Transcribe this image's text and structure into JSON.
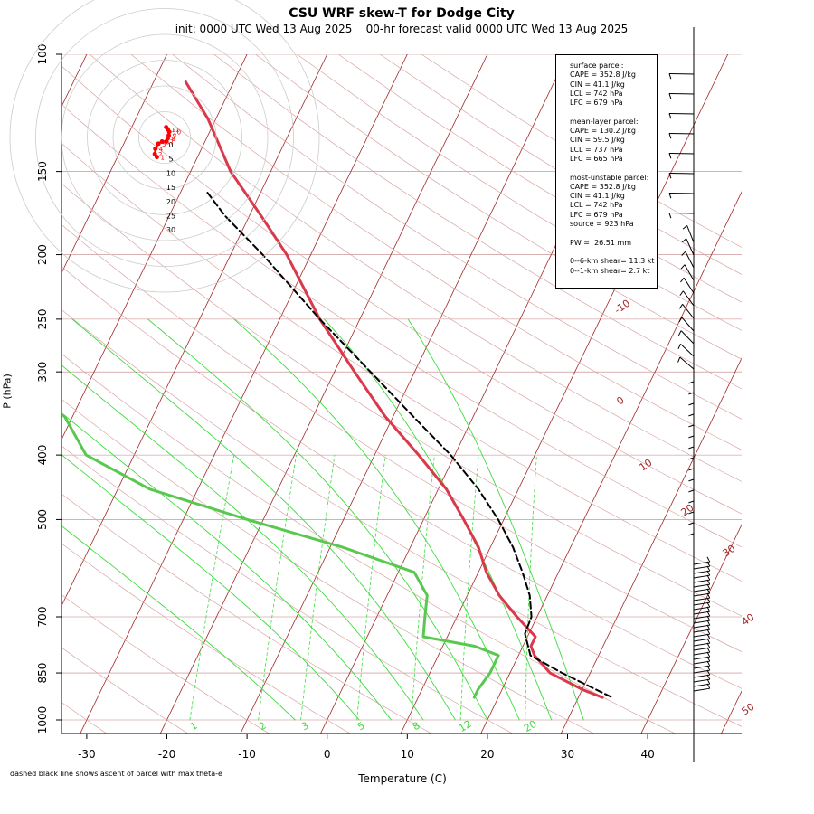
{
  "header": {
    "title": "CSU WRF skew-T for Dodge City",
    "subtitle": "init: 0000 UTC Wed 13 Aug 2025    00-hr forecast valid 0000 UTC Wed 13 Aug 2025"
  },
  "footnote": "dashed black line shows ascent of parcel with max theta-e",
  "info": {
    "surface": {
      "heading": "surface parcel:",
      "lines": [
        "CAPE = 352.8 J/kg",
        "CIN = 41.1 J/kg",
        "LCL = 742 hPa",
        "LFC = 679 hPa"
      ]
    },
    "mean_layer": {
      "heading": "mean-layer parcel:",
      "lines": [
        "CAPE = 130.2 J/kg",
        "CIN = 59.5 J/kg",
        "LCL = 737 hPa",
        "LFC = 665 hPa"
      ]
    },
    "most_unstable": {
      "heading": "most-unstable parcel:",
      "lines": [
        "CAPE = 352.8 J/kg",
        "CIN = 41.1 J/kg",
        "LCL = 742 hPa",
        "LFC = 679 hPa",
        "source = 923 hPa"
      ]
    },
    "pw": "PW =  26.51 mm",
    "shear": [
      "0--6-km shear= 11.3 kt",
      "0--1-km shear= 2.7 kt"
    ]
  },
  "colors": {
    "temperature": "#d9394b",
    "dewpoint": "#5ac850",
    "parcel": "#000000",
    "isotherm": "#a22828",
    "dry_adiabat": "#d8a4a4",
    "moist_adiabat": "#3ddc3d",
    "mixing_ratio": "#3ddc3d",
    "isobar": "#c08080",
    "hodograph": "#ff0000"
  },
  "chart_data": {
    "type": "line",
    "xlabel": "Temperature (C)",
    "ylabel": "P (hPa)",
    "xticks": [
      "-30",
      "-20",
      "-10",
      "0",
      "10",
      "20",
      "30",
      "40"
    ],
    "xlim": [
      -33,
      45
    ],
    "yticks": [
      "100",
      "150",
      "200",
      "250",
      "300",
      "400",
      "500",
      "700",
      "850",
      "1000"
    ],
    "ylim": [
      1000,
      100
    ],
    "isotherm_labels": [
      "-10",
      "0",
      "10",
      "20",
      "30",
      "40",
      "50"
    ],
    "mixing_ratio_labels": [
      "1",
      "2",
      "3",
      "5",
      "8",
      "12",
      "20"
    ],
    "series": [
      {
        "key": "temperature",
        "p": [
          925,
          900,
          850,
          800,
          775,
          750,
          700,
          650,
          600,
          550,
          500,
          450,
          400,
          350,
          300,
          250,
          200,
          175,
          150,
          125,
          110
        ],
        "t": [
          33,
          30,
          25,
          22,
          21,
          21,
          17.5,
          14,
          11,
          8.5,
          5,
          1,
          -4.5,
          -11,
          -17.5,
          -25,
          -33,
          -38.5,
          -45,
          -51,
          -56
        ]
      },
      {
        "key": "dewpoint",
        "p": [
          925,
          900,
          850,
          800,
          775,
          750,
          700,
          650,
          600,
          550,
          500,
          450,
          400,
          350,
          300,
          250,
          200,
          175,
          150,
          125,
          110
        ],
        "t": [
          17,
          17,
          17.5,
          17.5,
          14,
          7,
          6,
          5,
          2,
          -8.5,
          -22,
          -36,
          -46,
          -51,
          -64,
          -72,
          -82,
          -86,
          -89,
          -93,
          -96
        ]
      },
      {
        "key": "parcel",
        "p": [
          923,
          850,
          800,
          742,
          700,
          650,
          600,
          550,
          500,
          450,
          400,
          350,
          300,
          250,
          200,
          175,
          160
        ],
        "t": [
          34,
          26.5,
          21.5,
          19.5,
          19.3,
          17.8,
          15.5,
          12.8,
          9.3,
          5,
          -0.5,
          -7.5,
          -15.5,
          -25,
          -36,
          -43,
          -47
        ]
      }
    ],
    "hodograph": {
      "ring_labels": [
        "0",
        "5",
        "10",
        "15",
        "20",
        "25",
        "30"
      ],
      "point_labels": [
        "1",
        "2",
        "4",
        "5",
        "6",
        "7",
        "8",
        "9",
        "10",
        "11"
      ],
      "u": [
        -1.5,
        -1.9,
        -1.8,
        -1.2,
        -0.5,
        0.3,
        0.6,
        0.8,
        0.9,
        0.6,
        0.3
      ],
      "v": [
        -3.8,
        -3.2,
        -2.2,
        -1.2,
        -0.8,
        -0.8,
        -0.2,
        0.4,
        1.1,
        1.6,
        2.0
      ]
    }
  }
}
